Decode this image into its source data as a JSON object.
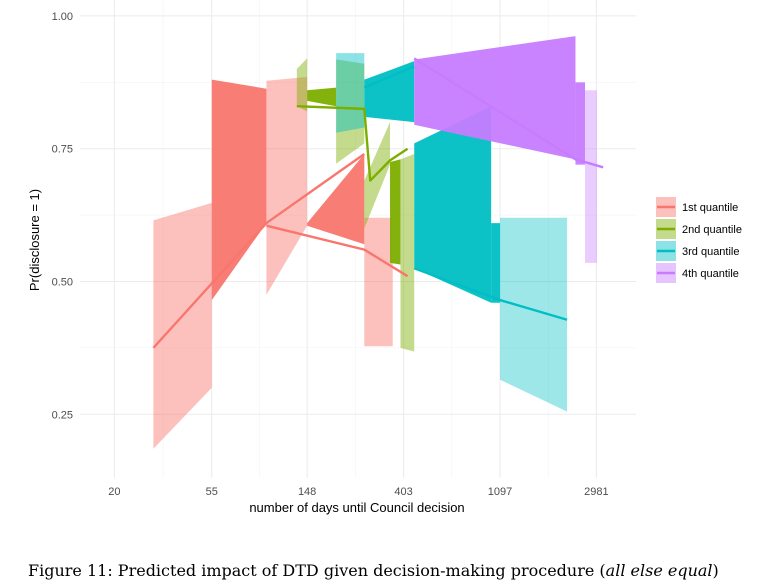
{
  "chart_data": {
    "type": "line",
    "xlabel": "number of days until Council decision",
    "ylabel": "Pr(disclosure = 1)",
    "x_scale": "log",
    "x_ticks": [
      20,
      55,
      148,
      403,
      1097,
      2981
    ],
    "x_tick_labels": [
      "20",
      "55",
      "148",
      "403",
      "1097",
      "2981"
    ],
    "y_ticks": [
      0.25,
      0.5,
      0.75,
      1.0
    ],
    "y_tick_labels": [
      "0.25",
      "0.50",
      "0.75",
      "1.00"
    ],
    "xlim": [
      14,
      4500
    ],
    "ylim": [
      0.13,
      1.03
    ],
    "grid": true,
    "legend_position": "right",
    "caption": {
      "prefix": "Figure 11: Predicted impact of DTD given decision-making procedure (",
      "italic": "all else equal",
      "suffix": ")"
    },
    "series": [
      {
        "name": "1st quantile",
        "color": "#F8766D",
        "line": [
          [
            30,
            0.375
          ],
          [
            97,
            0.61
          ],
          [
            268,
            0.74
          ]
        ],
        "line2": [
          [
            97,
            0.605
          ],
          [
            268,
            0.56
          ],
          [
            420,
            0.51
          ]
        ],
        "ribbons": [
          {
            "x": [
              30,
              55
            ],
            "lower": [
              0.185,
              0.3
            ],
            "upper": [
              0.615,
              0.648
            ],
            "alpha": 0.45
          },
          {
            "x": [
              55,
              97
            ],
            "lower": [
              0.465,
              0.61
            ],
            "upper": [
              0.88,
              0.863
            ],
            "alpha": 0.95
          },
          {
            "x": [
              97,
              148
            ],
            "lower": [
              0.475,
              0.605
            ],
            "upper": [
              0.878,
              0.885
            ],
            "alpha": 0.45
          },
          {
            "x": [
              148,
              268
            ],
            "lower": [
              0.605,
              0.57
            ],
            "upper": [
              0.61,
              0.74
            ],
            "alpha": 0.95
          },
          {
            "x": [
              268,
              360
            ],
            "lower": [
              0.378,
              0.378
            ],
            "upper": [
              0.62,
              0.62
            ],
            "alpha": 0.45
          }
        ]
      },
      {
        "name": "2nd quantile",
        "color": "#7CAE00",
        "line": [
          [
            133,
            0.83
          ],
          [
            268,
            0.825
          ],
          [
            285,
            0.69
          ],
          [
            350,
            0.728
          ],
          [
            420,
            0.75
          ]
        ],
        "ribbons": [
          {
            "x": [
              133,
              148
            ],
            "lower": [
              0.83,
              0.82
            ],
            "upper": [
              0.9,
              0.92
            ],
            "alpha": 0.45
          },
          {
            "x": [
              148,
              200
            ],
            "lower": [
              0.84,
              0.83
            ],
            "upper": [
              0.86,
              0.865
            ],
            "alpha": 0.95
          },
          {
            "x": [
              200,
              268
            ],
            "lower": [
              0.722,
              0.76
            ],
            "upper": [
              0.918,
              0.91
            ],
            "alpha": 0.45
          },
          {
            "x": [
              268,
              350
            ],
            "lower": [
              0.6,
              0.72
            ],
            "upper": [
              0.69,
              0.8
            ],
            "alpha": 0.45
          },
          {
            "x": [
              350,
              390
            ],
            "lower": [
              0.535,
              0.532
            ],
            "upper": [
              0.725,
              0.73
            ],
            "alpha": 0.95
          },
          {
            "x": [
              390,
              450
            ],
            "lower": [
              0.375,
              0.368
            ],
            "upper": [
              0.73,
              0.74
            ],
            "alpha": 0.45
          }
        ]
      },
      {
        "name": "3rd quantile",
        "color": "#00BFC4",
        "line": [
          [
            268,
            0.865
          ],
          [
            450,
            0.905
          ]
        ],
        "line2": [
          [
            450,
            0.525
          ],
          [
            1097,
            0.465
          ],
          [
            2200,
            0.428
          ]
        ],
        "ribbons": [
          {
            "x": [
              200,
              268
            ],
            "lower": [
              0.78,
              0.79
            ],
            "upper": [
              0.93,
              0.93
            ],
            "alpha": 0.45
          },
          {
            "x": [
              268,
              450
            ],
            "lower": [
              0.81,
              0.8
            ],
            "upper": [
              0.88,
              0.915
            ],
            "alpha": 0.95
          },
          {
            "x": [
              450,
              1000
            ],
            "lower": [
              0.525,
              0.46
            ],
            "upper": [
              0.76,
              0.83
            ],
            "alpha": 0.95
          },
          {
            "x": [
              1000,
              1097
            ],
            "lower": [
              0.46,
              0.46
            ],
            "upper": [
              0.61,
              0.61
            ],
            "alpha": 0.95
          },
          {
            "x": [
              1097,
              2200
            ],
            "lower": [
              0.315,
              0.255
            ],
            "upper": [
              0.62,
              0.62
            ],
            "alpha": 0.38
          }
        ]
      },
      {
        "name": "4th quantile",
        "color": "#C77CFF",
        "line": [
          [
            450,
            0.92
          ],
          [
            2400,
            0.73
          ],
          [
            3200,
            0.715
          ]
        ],
        "ribbons": [
          {
            "x": [
              450,
              2400
            ],
            "lower": [
              0.795,
              0.73
            ],
            "upper": [
              0.918,
              0.962
            ],
            "alpha": 0.95
          },
          {
            "x": [
              2400,
              2650
            ],
            "lower": [
              0.72,
              0.72
            ],
            "upper": [
              0.875,
              0.875
            ],
            "alpha": 0.95
          },
          {
            "x": [
              2650,
              3000
            ],
            "lower": [
              0.535,
              0.535
            ],
            "upper": [
              0.86,
              0.86
            ],
            "alpha": 0.38
          }
        ]
      }
    ]
  }
}
